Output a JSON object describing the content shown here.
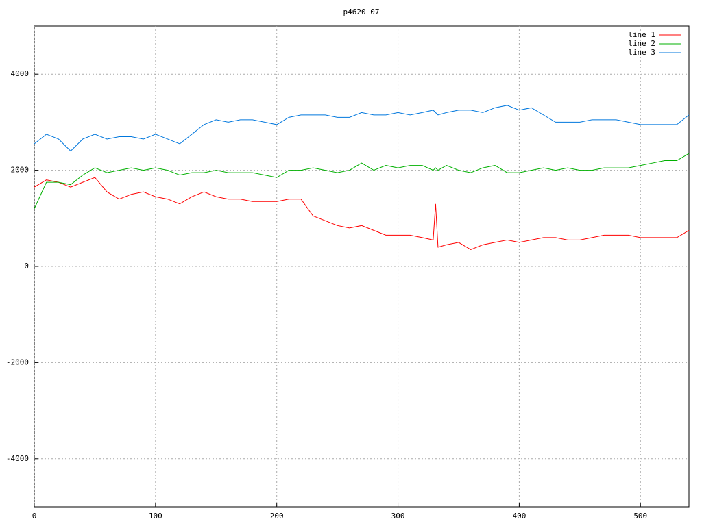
{
  "chart_data": {
    "type": "line",
    "title": "p4620_07",
    "x": [
      0,
      10,
      20,
      30,
      40,
      50,
      60,
      70,
      80,
      90,
      100,
      110,
      120,
      130,
      140,
      150,
      160,
      170,
      180,
      190,
      200,
      210,
      220,
      230,
      240,
      250,
      260,
      270,
      280,
      290,
      300,
      310,
      320,
      329,
      331,
      333,
      340,
      350,
      360,
      370,
      380,
      390,
      400,
      410,
      420,
      430,
      440,
      450,
      460,
      470,
      480,
      490,
      500,
      510,
      520,
      530,
      540
    ],
    "series": [
      {
        "name": "line 1",
        "color": "#ff0000",
        "values": [
          1650,
          1800,
          1750,
          1650,
          1750,
          1850,
          1550,
          1400,
          1500,
          1550,
          1450,
          1400,
          1300,
          1450,
          1550,
          1450,
          1400,
          1400,
          1350,
          1350,
          1350,
          1400,
          1400,
          1050,
          950,
          850,
          800,
          850,
          750,
          650,
          650,
          650,
          600,
          550,
          1300,
          400,
          450,
          500,
          350,
          450,
          500,
          550,
          500,
          550,
          600,
          600,
          550,
          550,
          600,
          650,
          650,
          650,
          600,
          600,
          600,
          600,
          750
        ]
      },
      {
        "name": "line 2",
        "color": "#00b000",
        "values": [
          1200,
          1750,
          1750,
          1700,
          1900,
          2050,
          1950,
          2000,
          2050,
          2000,
          2050,
          2000,
          1900,
          1950,
          1950,
          2000,
          1950,
          1950,
          1950,
          1900,
          1850,
          2000,
          2000,
          2050,
          2000,
          1950,
          2000,
          2150,
          2000,
          2100,
          2050,
          2100,
          2100,
          2000,
          2050,
          2000,
          2100,
          2000,
          1950,
          2050,
          2100,
          1950,
          1950,
          2000,
          2050,
          2000,
          2050,
          2000,
          2000,
          2050,
          2050,
          2050,
          2100,
          2150,
          2200,
          2200,
          2350
        ]
      },
      {
        "name": "line 3",
        "color": "#0077dd",
        "values": [
          2550,
          2750,
          2650,
          2400,
          2650,
          2750,
          2650,
          2700,
          2700,
          2650,
          2750,
          2650,
          2550,
          2750,
          2950,
          3050,
          3000,
          3050,
          3050,
          3000,
          2950,
          3100,
          3150,
          3150,
          3150,
          3100,
          3100,
          3200,
          3150,
          3150,
          3200,
          3150,
          3200,
          3250,
          3200,
          3150,
          3200,
          3250,
          3250,
          3200,
          3300,
          3350,
          3250,
          3300,
          3150,
          3000,
          3000,
          3000,
          3050,
          3050,
          3050,
          3000,
          2950,
          2950,
          2950,
          2950,
          3150
        ]
      }
    ],
    "xlim": [
      0,
      540
    ],
    "xticks": [
      0,
      100,
      200,
      300,
      400,
      500
    ],
    "ylim": [
      -5000,
      5000
    ],
    "yticks": [
      -4000,
      -2000,
      0,
      2000,
      4000
    ],
    "grid": true,
    "legend": "top-right"
  }
}
